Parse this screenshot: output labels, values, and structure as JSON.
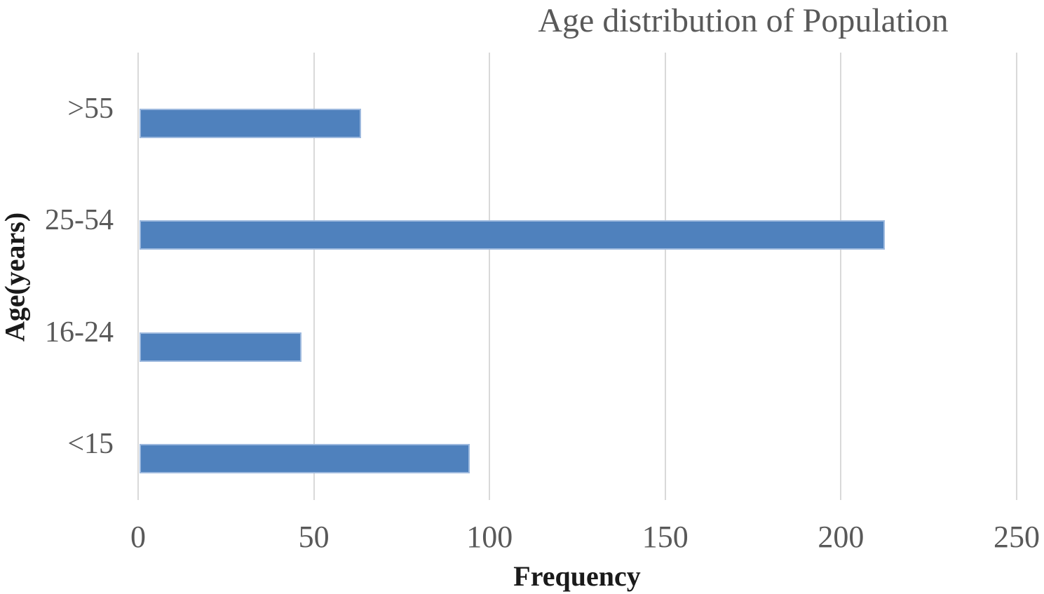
{
  "chart_data": {
    "type": "bar",
    "orientation": "horizontal",
    "title": "Age distribution of Population",
    "categories": [
      ">55",
      "25-54",
      "16-24",
      "<15"
    ],
    "values": [
      63,
      212,
      46,
      94
    ],
    "xlabel": "Frequency",
    "ylabel": "Age(years)",
    "xlim": [
      0,
      250
    ],
    "xticks": [
      "0",
      "50",
      "100",
      "150",
      "200",
      "250"
    ],
    "grid": true,
    "legend": false,
    "colors": {
      "bar_fill": "#4f81bd",
      "bar_border": "#9db9de",
      "gridline": "#d9d9d9",
      "tick_text": "#595959",
      "title_text": "#595959",
      "axis_title_text": "#1a1a1a"
    }
  }
}
